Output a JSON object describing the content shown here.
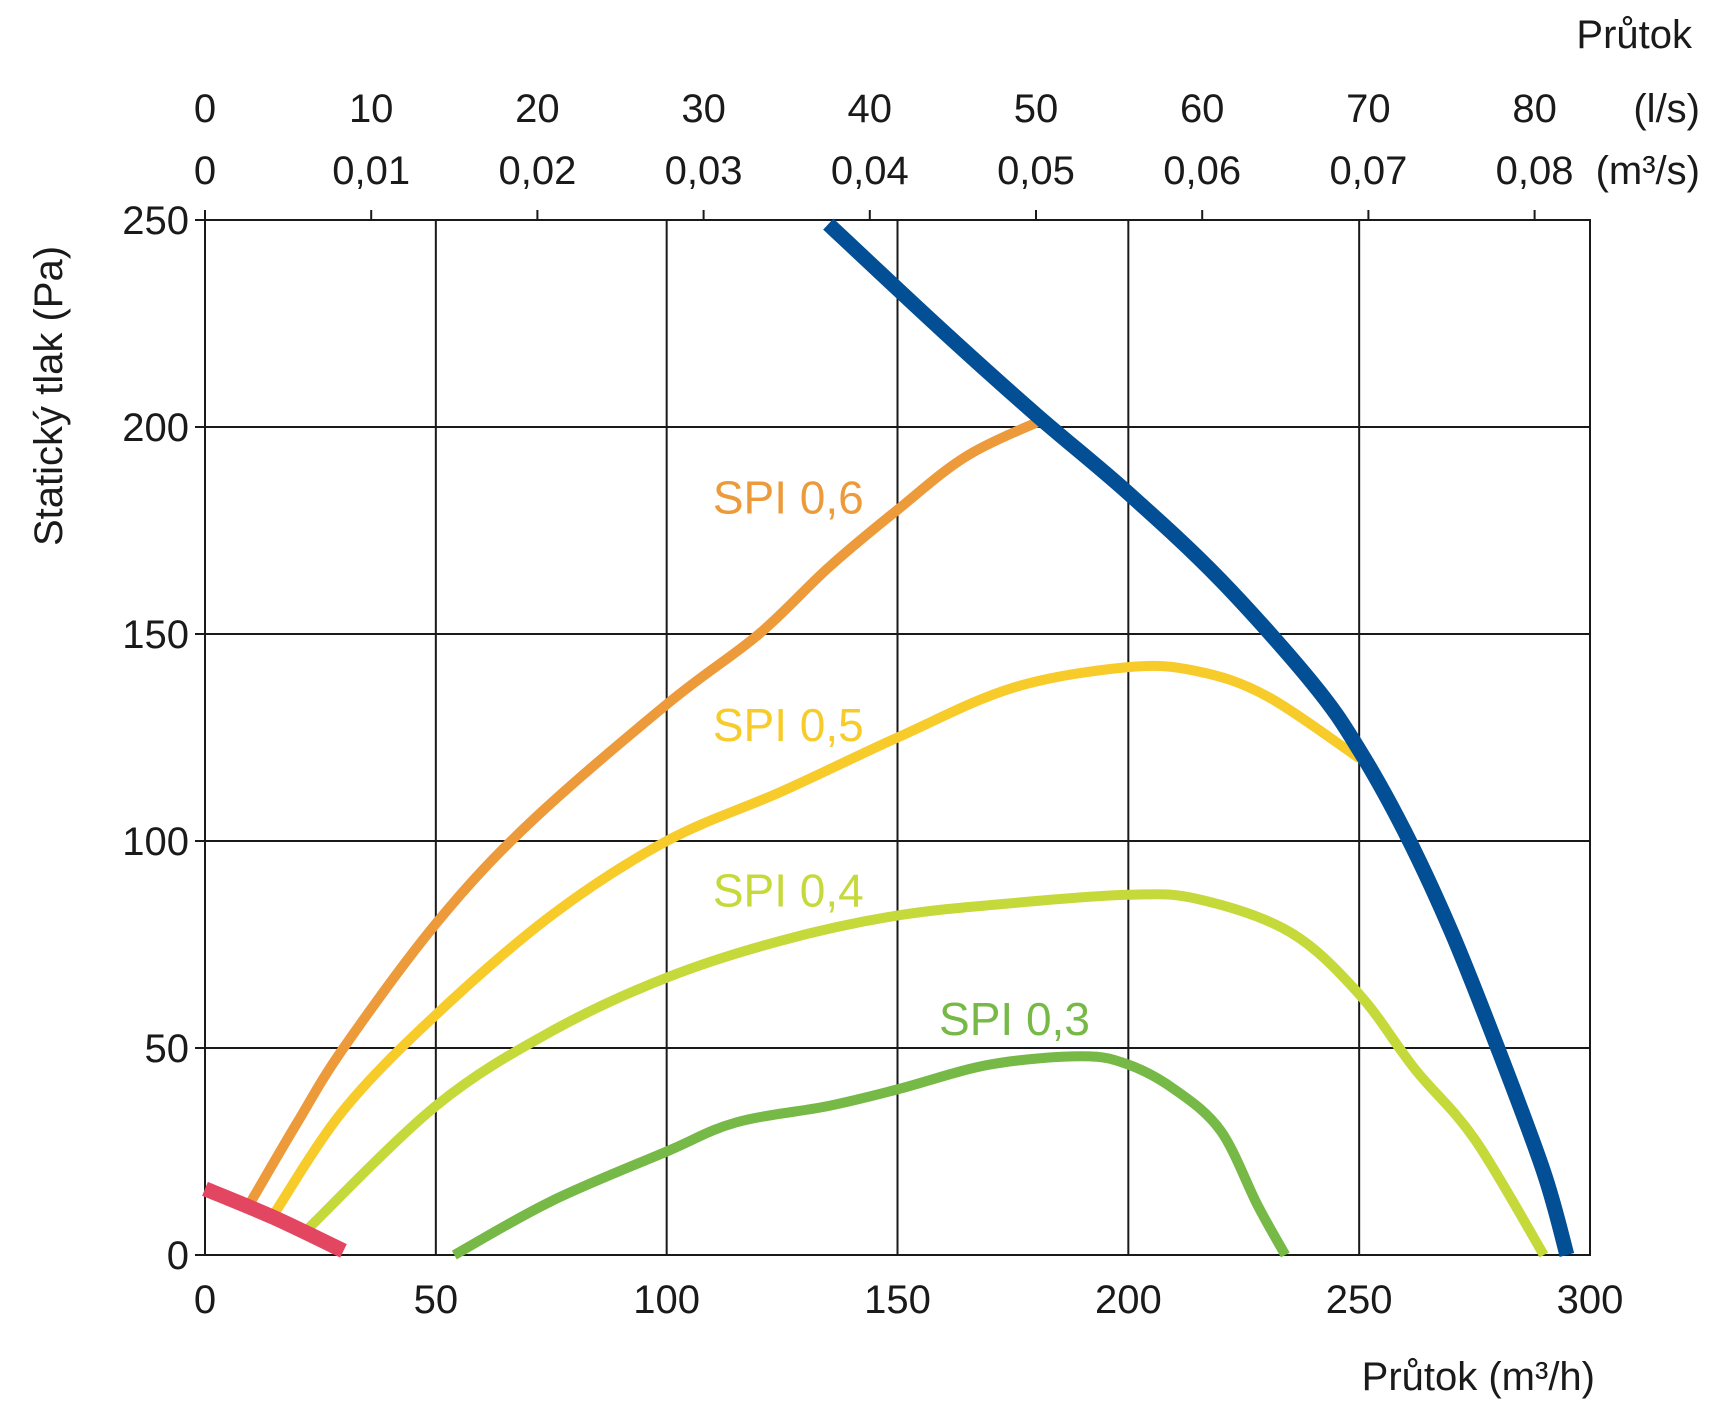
{
  "chart_data": {
    "type": "line",
    "xlabel": "Průtok (m³/h)",
    "ylabel": "Statický tlak  (Pa)",
    "top_axis_title": "Průtok",
    "xlim": [
      0,
      300
    ],
    "ylim": [
      0,
      250
    ],
    "grid": true,
    "x_ticks": [
      0,
      50,
      100,
      150,
      200,
      250,
      300
    ],
    "y_ticks": [
      0,
      50,
      100,
      150,
      200,
      250
    ],
    "top_axis_ls": {
      "unit": "(l/s)",
      "ticks": [
        {
          "value": 0,
          "label": "0"
        },
        {
          "value": 10,
          "label": "10"
        },
        {
          "value": 20,
          "label": "20"
        },
        {
          "value": 30,
          "label": "30"
        },
        {
          "value": 40,
          "label": "40"
        },
        {
          "value": 50,
          "label": "50"
        },
        {
          "value": 60,
          "label": "60"
        },
        {
          "value": 70,
          "label": "70"
        },
        {
          "value": 80,
          "label": "80"
        }
      ]
    },
    "top_axis_m3s": {
      "unit": "(m³/s)",
      "ticks": [
        {
          "value": 0,
          "label": "0"
        },
        {
          "value": 10,
          "label": "0,01"
        },
        {
          "value": 20,
          "label": "0,02"
        },
        {
          "value": 30,
          "label": "0,03"
        },
        {
          "value": 40,
          "label": "0,04"
        },
        {
          "value": 50,
          "label": "0,05"
        },
        {
          "value": 60,
          "label": "0,06"
        },
        {
          "value": 70,
          "label": "0,07"
        },
        {
          "value": 80,
          "label": "0,08"
        }
      ]
    },
    "series": [
      {
        "name": "SPI 0,6",
        "color": "#ec9a3a",
        "label_at": [
          110,
          183
        ],
        "points": [
          [
            10,
            13
          ],
          [
            20,
            32
          ],
          [
            30,
            50
          ],
          [
            50,
            80
          ],
          [
            70,
            104
          ],
          [
            100,
            133
          ],
          [
            120,
            150
          ],
          [
            135,
            166
          ],
          [
            150,
            180
          ],
          [
            165,
            193
          ],
          [
            182,
            202
          ]
        ]
      },
      {
        "name": "SPI 0,5",
        "color": "#f7cc2a",
        "label_at": [
          110,
          128
        ],
        "points": [
          [
            15,
            10
          ],
          [
            30,
            35
          ],
          [
            50,
            58
          ],
          [
            75,
            82
          ],
          [
            100,
            100
          ],
          [
            125,
            112
          ],
          [
            150,
            125
          ],
          [
            175,
            137
          ],
          [
            200,
            142
          ],
          [
            215,
            141
          ],
          [
            230,
            135
          ],
          [
            250,
            120
          ]
        ]
      },
      {
        "name": "SPI 0,4",
        "color": "#c6d93a",
        "label_at": [
          110,
          88
        ],
        "points": [
          [
            22,
            6
          ],
          [
            50,
            36
          ],
          [
            75,
            54
          ],
          [
            100,
            67
          ],
          [
            125,
            76
          ],
          [
            150,
            82
          ],
          [
            175,
            85
          ],
          [
            200,
            87
          ],
          [
            215,
            86
          ],
          [
            235,
            78
          ],
          [
            250,
            63
          ],
          [
            262,
            45
          ],
          [
            275,
            28
          ],
          [
            290,
            0
          ]
        ]
      },
      {
        "name": "SPI 0,3",
        "color": "#76b947",
        "label_at": [
          159,
          57
        ],
        "points": [
          [
            54,
            0
          ],
          [
            75,
            13
          ],
          [
            100,
            25
          ],
          [
            115,
            32
          ],
          [
            135,
            36
          ],
          [
            150,
            40
          ],
          [
            170,
            46
          ],
          [
            190,
            48
          ],
          [
            200,
            46
          ],
          [
            210,
            40
          ],
          [
            220,
            30
          ],
          [
            228,
            12
          ],
          [
            234,
            0
          ]
        ]
      },
      {
        "name": "",
        "color": "#024f95",
        "points": [
          [
            135,
            249
          ],
          [
            160,
            223
          ],
          [
            180,
            203
          ],
          [
            200,
            184
          ],
          [
            220,
            163
          ],
          [
            240,
            138
          ],
          [
            250,
            122
          ],
          [
            260,
            102
          ],
          [
            270,
            78
          ],
          [
            280,
            50
          ],
          [
            290,
            20
          ],
          [
            295,
            0
          ]
        ]
      },
      {
        "name": "",
        "color": "#e34660",
        "points": [
          [
            0,
            16
          ],
          [
            15,
            9
          ],
          [
            30,
            1
          ]
        ]
      }
    ]
  }
}
